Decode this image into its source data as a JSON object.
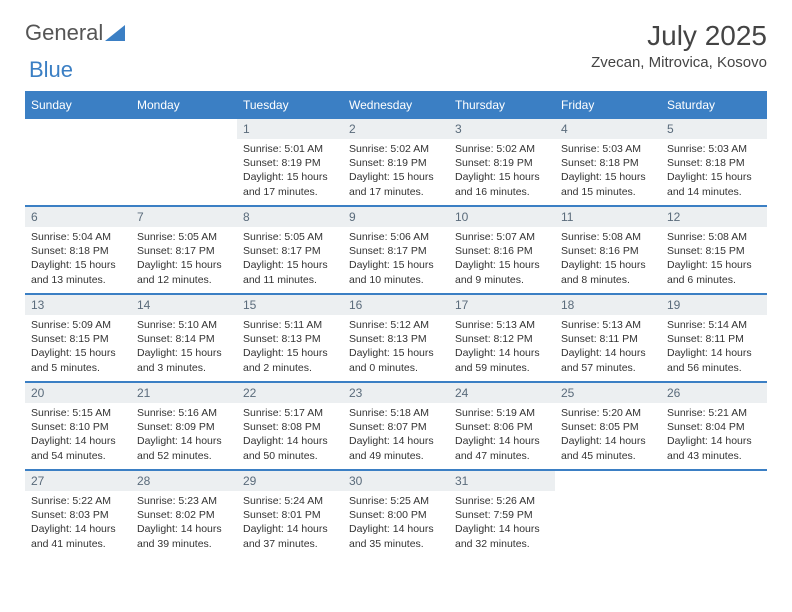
{
  "logo": {
    "part1": "General",
    "part2": "Blue"
  },
  "title": "July 2025",
  "location": "Zvecan, Mitrovica, Kosovo",
  "colors": {
    "accent": "#3b7fc4",
    "daynum_bg": "#eceff1",
    "daynum_text": "#5a6b7b",
    "text": "#333333",
    "header_text": "#444444"
  },
  "weekdays": [
    "Sunday",
    "Monday",
    "Tuesday",
    "Wednesday",
    "Thursday",
    "Friday",
    "Saturday"
  ],
  "weeks": [
    [
      null,
      null,
      {
        "n": "1",
        "sr": "Sunrise: 5:01 AM",
        "ss": "Sunset: 8:19 PM",
        "dl": "Daylight: 15 hours and 17 minutes."
      },
      {
        "n": "2",
        "sr": "Sunrise: 5:02 AM",
        "ss": "Sunset: 8:19 PM",
        "dl": "Daylight: 15 hours and 17 minutes."
      },
      {
        "n": "3",
        "sr": "Sunrise: 5:02 AM",
        "ss": "Sunset: 8:19 PM",
        "dl": "Daylight: 15 hours and 16 minutes."
      },
      {
        "n": "4",
        "sr": "Sunrise: 5:03 AM",
        "ss": "Sunset: 8:18 PM",
        "dl": "Daylight: 15 hours and 15 minutes."
      },
      {
        "n": "5",
        "sr": "Sunrise: 5:03 AM",
        "ss": "Sunset: 8:18 PM",
        "dl": "Daylight: 15 hours and 14 minutes."
      }
    ],
    [
      {
        "n": "6",
        "sr": "Sunrise: 5:04 AM",
        "ss": "Sunset: 8:18 PM",
        "dl": "Daylight: 15 hours and 13 minutes."
      },
      {
        "n": "7",
        "sr": "Sunrise: 5:05 AM",
        "ss": "Sunset: 8:17 PM",
        "dl": "Daylight: 15 hours and 12 minutes."
      },
      {
        "n": "8",
        "sr": "Sunrise: 5:05 AM",
        "ss": "Sunset: 8:17 PM",
        "dl": "Daylight: 15 hours and 11 minutes."
      },
      {
        "n": "9",
        "sr": "Sunrise: 5:06 AM",
        "ss": "Sunset: 8:17 PM",
        "dl": "Daylight: 15 hours and 10 minutes."
      },
      {
        "n": "10",
        "sr": "Sunrise: 5:07 AM",
        "ss": "Sunset: 8:16 PM",
        "dl": "Daylight: 15 hours and 9 minutes."
      },
      {
        "n": "11",
        "sr": "Sunrise: 5:08 AM",
        "ss": "Sunset: 8:16 PM",
        "dl": "Daylight: 15 hours and 8 minutes."
      },
      {
        "n": "12",
        "sr": "Sunrise: 5:08 AM",
        "ss": "Sunset: 8:15 PM",
        "dl": "Daylight: 15 hours and 6 minutes."
      }
    ],
    [
      {
        "n": "13",
        "sr": "Sunrise: 5:09 AM",
        "ss": "Sunset: 8:15 PM",
        "dl": "Daylight: 15 hours and 5 minutes."
      },
      {
        "n": "14",
        "sr": "Sunrise: 5:10 AM",
        "ss": "Sunset: 8:14 PM",
        "dl": "Daylight: 15 hours and 3 minutes."
      },
      {
        "n": "15",
        "sr": "Sunrise: 5:11 AM",
        "ss": "Sunset: 8:13 PM",
        "dl": "Daylight: 15 hours and 2 minutes."
      },
      {
        "n": "16",
        "sr": "Sunrise: 5:12 AM",
        "ss": "Sunset: 8:13 PM",
        "dl": "Daylight: 15 hours and 0 minutes."
      },
      {
        "n": "17",
        "sr": "Sunrise: 5:13 AM",
        "ss": "Sunset: 8:12 PM",
        "dl": "Daylight: 14 hours and 59 minutes."
      },
      {
        "n": "18",
        "sr": "Sunrise: 5:13 AM",
        "ss": "Sunset: 8:11 PM",
        "dl": "Daylight: 14 hours and 57 minutes."
      },
      {
        "n": "19",
        "sr": "Sunrise: 5:14 AM",
        "ss": "Sunset: 8:11 PM",
        "dl": "Daylight: 14 hours and 56 minutes."
      }
    ],
    [
      {
        "n": "20",
        "sr": "Sunrise: 5:15 AM",
        "ss": "Sunset: 8:10 PM",
        "dl": "Daylight: 14 hours and 54 minutes."
      },
      {
        "n": "21",
        "sr": "Sunrise: 5:16 AM",
        "ss": "Sunset: 8:09 PM",
        "dl": "Daylight: 14 hours and 52 minutes."
      },
      {
        "n": "22",
        "sr": "Sunrise: 5:17 AM",
        "ss": "Sunset: 8:08 PM",
        "dl": "Daylight: 14 hours and 50 minutes."
      },
      {
        "n": "23",
        "sr": "Sunrise: 5:18 AM",
        "ss": "Sunset: 8:07 PM",
        "dl": "Daylight: 14 hours and 49 minutes."
      },
      {
        "n": "24",
        "sr": "Sunrise: 5:19 AM",
        "ss": "Sunset: 8:06 PM",
        "dl": "Daylight: 14 hours and 47 minutes."
      },
      {
        "n": "25",
        "sr": "Sunrise: 5:20 AM",
        "ss": "Sunset: 8:05 PM",
        "dl": "Daylight: 14 hours and 45 minutes."
      },
      {
        "n": "26",
        "sr": "Sunrise: 5:21 AM",
        "ss": "Sunset: 8:04 PM",
        "dl": "Daylight: 14 hours and 43 minutes."
      }
    ],
    [
      {
        "n": "27",
        "sr": "Sunrise: 5:22 AM",
        "ss": "Sunset: 8:03 PM",
        "dl": "Daylight: 14 hours and 41 minutes."
      },
      {
        "n": "28",
        "sr": "Sunrise: 5:23 AM",
        "ss": "Sunset: 8:02 PM",
        "dl": "Daylight: 14 hours and 39 minutes."
      },
      {
        "n": "29",
        "sr": "Sunrise: 5:24 AM",
        "ss": "Sunset: 8:01 PM",
        "dl": "Daylight: 14 hours and 37 minutes."
      },
      {
        "n": "30",
        "sr": "Sunrise: 5:25 AM",
        "ss": "Sunset: 8:00 PM",
        "dl": "Daylight: 14 hours and 35 minutes."
      },
      {
        "n": "31",
        "sr": "Sunrise: 5:26 AM",
        "ss": "Sunset: 7:59 PM",
        "dl": "Daylight: 14 hours and 32 minutes."
      },
      null,
      null
    ]
  ]
}
